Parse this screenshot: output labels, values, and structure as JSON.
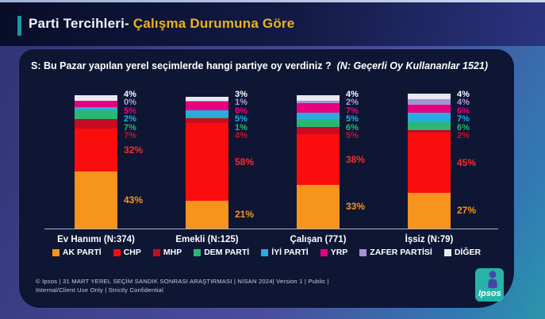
{
  "header": {
    "title_white": "Parti Tercihleri-",
    "title_yellow": "Çalışma Durumuna Göre"
  },
  "question": {
    "text": "S: Bu Pazar yapılan yerel seçimlerde hangi partiye oy verdiniz ?",
    "note": "(N: Geçerli Oy Kullananlar 1521)"
  },
  "chart_data": {
    "type": "bar",
    "stacked": true,
    "orientation": "vertical",
    "value_suffix": "%",
    "ylim": [
      0,
      100
    ],
    "legend_position": "bottom",
    "categories": [
      "Ev Hanımı (N:374)",
      "Emekli (N:125)",
      "Çalışan (771)",
      "İşsiz (N:79)"
    ],
    "series": [
      {
        "name": "AK PARTİ",
        "color": "#f7941d",
        "label_color": "#f7941d",
        "values": [
          43,
          21,
          33,
          27
        ]
      },
      {
        "name": "CHP",
        "color": "#fb0d0d",
        "label_color": "#ff2a2a",
        "values": [
          32,
          58,
          38,
          45
        ]
      },
      {
        "name": "MHP",
        "color": "#c60c22",
        "label_color": "#c61230",
        "values": [
          7,
          4,
          5,
          2
        ]
      },
      {
        "name": "DEM PARTİ",
        "color": "#2bb673",
        "label_color": "#2bb673",
        "values": [
          7,
          1,
          6,
          6
        ]
      },
      {
        "name": "İYİ PARTİ",
        "color": "#29abe2",
        "label_color": "#29abe2",
        "values": [
          2,
          5,
          5,
          7
        ]
      },
      {
        "name": "YRP",
        "color": "#e6007e",
        "label_color": "#e6007e",
        "values": [
          5,
          6,
          7,
          6
        ]
      },
      {
        "name": "ZAFER PARTİSİ",
        "color": "#a393d3",
        "label_color": "#a99fe0",
        "values": [
          0,
          1,
          2,
          4
        ]
      },
      {
        "name": "DİĞER",
        "color": "#e9e8f1",
        "label_color": "#ffffff",
        "values": [
          4,
          3,
          4,
          4
        ]
      }
    ]
  },
  "footer": {
    "line1": "© Ipsos | 31 MART YEREL SEÇİM SANDIK SONRASI ARAŞTIRMASI | NİSAN 2024| Version 1 | Public |",
    "line2": "Internal/Client Use Only | Strictly Confidential"
  },
  "logo": {
    "text": "Ipsos"
  }
}
